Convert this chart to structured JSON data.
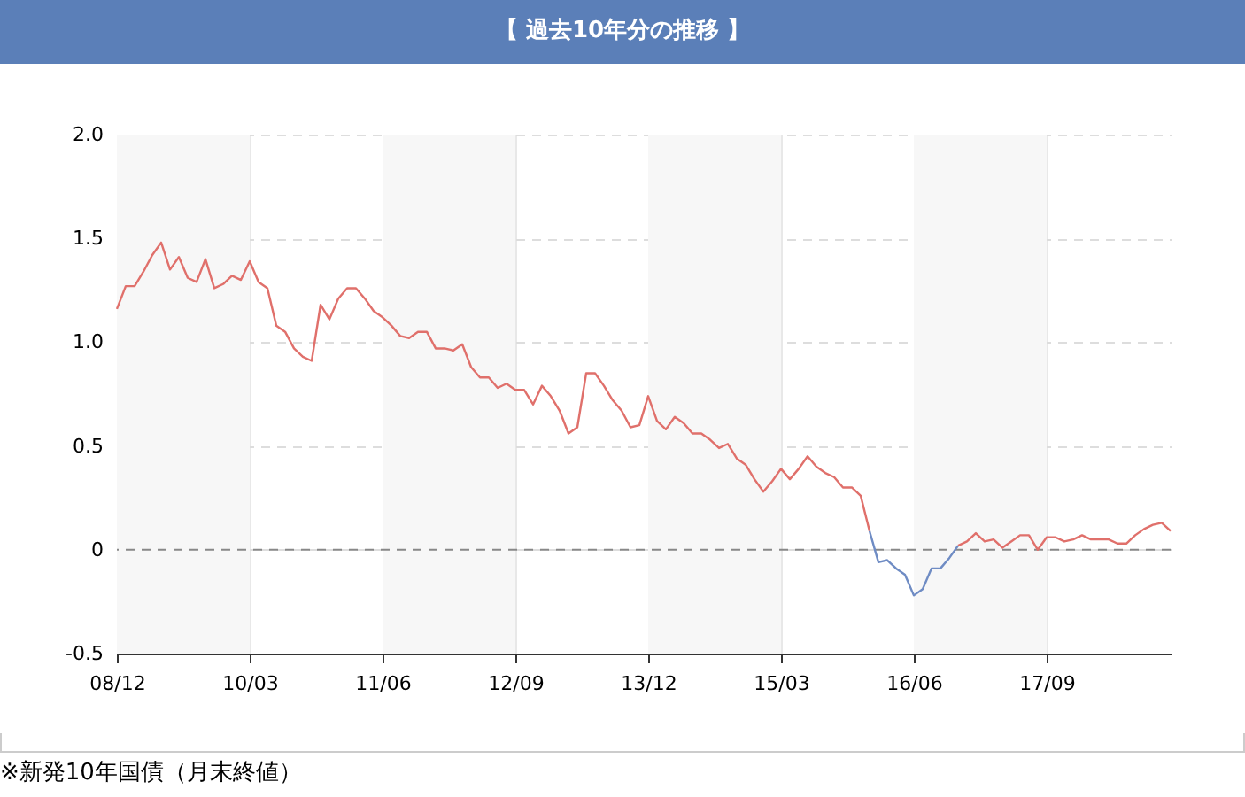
{
  "chart_data": {
    "type": "line",
    "title": "【 過去10年分の推移 】",
    "categories": [
      "08/12",
      null,
      null,
      null,
      null,
      null,
      null,
      null,
      null,
      null,
      null,
      null,
      null,
      null,
      null,
      "10/03",
      null,
      null,
      null,
      null,
      null,
      null,
      null,
      null,
      null,
      null,
      null,
      null,
      null,
      null,
      "11/06",
      null,
      null,
      null,
      null,
      null,
      null,
      null,
      null,
      null,
      null,
      null,
      null,
      null,
      null,
      "12/09",
      null,
      null,
      null,
      null,
      null,
      null,
      null,
      null,
      null,
      null,
      null,
      null,
      null,
      null,
      "13/12",
      null,
      null,
      null,
      null,
      null,
      null,
      null,
      null,
      null,
      null,
      null,
      null,
      null,
      null,
      "15/03",
      null,
      null,
      null,
      null,
      null,
      null,
      null,
      null,
      null,
      null,
      null,
      null,
      null,
      null,
      "16/06",
      null,
      null,
      null,
      null,
      null,
      null,
      null,
      null,
      null,
      null,
      null,
      null,
      null,
      null,
      "17/09",
      null,
      null,
      null,
      null,
      null,
      null,
      null,
      null,
      null,
      null,
      null,
      null,
      null,
      null
    ],
    "series": [
      {
        "color": "#e0706b",
        "values": [
          1.16,
          1.27,
          1.27,
          1.34,
          1.42,
          1.48,
          1.35,
          1.41,
          1.31,
          1.29,
          1.4,
          1.26,
          1.28,
          1.32,
          1.3,
          1.39,
          1.29,
          1.26,
          1.08,
          1.05,
          0.97,
          0.93,
          0.91,
          1.18,
          1.11,
          1.21,
          1.26,
          1.26,
          1.21,
          1.15,
          1.12,
          1.08,
          1.03,
          1.02,
          1.05,
          1.05,
          0.97,
          0.97,
          0.96,
          0.99,
          0.88,
          0.83,
          0.83,
          0.78,
          0.8,
          0.77,
          0.77,
          0.7,
          0.79,
          0.74,
          0.67,
          0.56,
          0.59,
          0.85,
          0.85,
          0.79,
          0.72,
          0.67,
          0.59,
          0.6,
          0.74,
          0.62,
          0.58,
          0.64,
          0.61,
          0.56,
          0.56,
          0.53,
          0.49,
          0.51,
          0.44,
          0.41,
          0.34,
          0.28,
          0.33,
          0.39,
          0.34,
          0.39,
          0.45,
          0.4,
          0.37,
          0.35,
          0.3,
          0.3,
          0.26,
          0.09,
          null,
          null,
          null,
          null,
          null,
          null,
          null,
          null,
          null,
          0.02,
          0.04,
          0.08,
          0.04,
          0.05,
          0.01,
          0.04,
          0.07,
          0.07,
          0.0,
          0.06,
          0.06,
          0.04,
          0.05,
          0.07,
          0.05,
          0.05,
          0.05,
          0.03,
          0.03,
          0.07,
          0.1,
          0.12,
          0.13,
          0.09
        ]
      },
      {
        "color": "#6f8cc4",
        "values": [
          null,
          null,
          null,
          null,
          null,
          null,
          null,
          null,
          null,
          null,
          null,
          null,
          null,
          null,
          null,
          null,
          null,
          null,
          null,
          null,
          null,
          null,
          null,
          null,
          null,
          null,
          null,
          null,
          null,
          null,
          null,
          null,
          null,
          null,
          null,
          null,
          null,
          null,
          null,
          null,
          null,
          null,
          null,
          null,
          null,
          null,
          null,
          null,
          null,
          null,
          null,
          null,
          null,
          null,
          null,
          null,
          null,
          null,
          null,
          null,
          null,
          null,
          null,
          null,
          null,
          null,
          null,
          null,
          null,
          null,
          null,
          null,
          null,
          null,
          null,
          null,
          null,
          null,
          null,
          null,
          null,
          null,
          null,
          null,
          null,
          0.09,
          -0.06,
          -0.05,
          -0.09,
          -0.12,
          -0.22,
          -0.19,
          -0.09,
          -0.09,
          -0.04,
          0.02,
          null,
          null,
          null,
          null,
          null,
          null,
          null,
          null,
          null,
          null,
          null,
          null,
          null,
          null,
          null,
          null,
          null,
          null,
          null,
          null,
          null,
          null,
          null,
          null
        ]
      }
    ],
    "ylim": [
      -0.5,
      2
    ],
    "yticks": [
      {
        "value": -0.5,
        "label": "-0.5"
      },
      {
        "value": 0,
        "label": "0"
      },
      {
        "value": 0.5,
        "label": "0.5"
      },
      {
        "value": 1,
        "label": "1.0"
      },
      {
        "value": 1.5,
        "label": "1.5"
      },
      {
        "value": 2,
        "label": "2.0"
      }
    ],
    "grid": true,
    "line_style": "solid",
    "marker": "none",
    "ref_lines": [
      {
        "axis": "y",
        "value": 0,
        "color": "#888888",
        "line_style": "dashed"
      }
    ],
    "bands": [
      {
        "axis": "x",
        "from": "08/12",
        "to": "10/03",
        "color": "#f7f7f7"
      },
      {
        "axis": "x",
        "from": "11/06",
        "to": "12/09",
        "color": "#f7f7f7"
      },
      {
        "axis": "x",
        "from": "13/12",
        "to": "15/03",
        "color": "#f7f7f7"
      },
      {
        "axis": "x",
        "from": "16/06",
        "to": "17/09",
        "color": "#f7f7f7"
      }
    ],
    "annotations": [
      "※新発10年国債（月末終値）"
    ]
  }
}
